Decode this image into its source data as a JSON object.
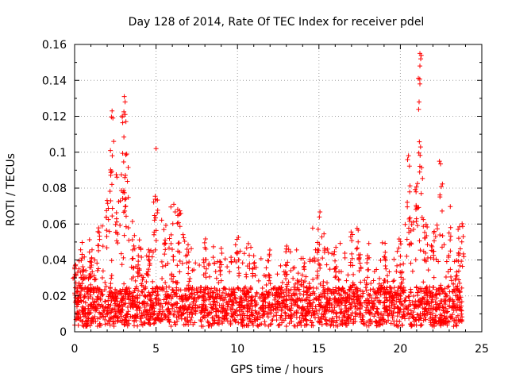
{
  "chart_data": {
    "type": "scatter",
    "title": "Day 128 of 2014, Rate Of TEC Index for receiver pdel",
    "xlabel": "GPS time / hours",
    "ylabel": "ROTI / TECUs",
    "xlim": [
      0,
      25
    ],
    "ylim": [
      0,
      0.16
    ],
    "xticks": [
      0,
      5,
      10,
      15,
      20,
      25
    ],
    "xtick_labels": [
      "0",
      "5",
      "10",
      "15",
      "20",
      "25"
    ],
    "yticks": [
      0,
      0.02,
      0.04,
      0.06,
      0.08,
      0.1,
      0.12,
      0.14,
      0.16
    ],
    "ytick_labels": [
      "0",
      "0.02",
      "0.04",
      "0.06",
      "0.08",
      "0.1",
      "0.12",
      "0.14",
      "0.16"
    ],
    "grid": true,
    "marker": "+",
    "color": "#ff0000",
    "data_range_x": [
      0,
      23.8
    ],
    "envelope": {
      "x": [
        0,
        0.5,
        1.0,
        1.5,
        2.0,
        2.3,
        2.6,
        3.0,
        3.2,
        3.6,
        4.0,
        4.5,
        5.0,
        5.5,
        6.0,
        6.4,
        7.0,
        8.0,
        9.0,
        10.0,
        11.0,
        12.0,
        13.0,
        14.0,
        15.0,
        16.0,
        17.0,
        17.5,
        18.0,
        19.0,
        20.0,
        20.5,
        21.0,
        21.2,
        21.5,
        22.0,
        22.5,
        23.0,
        23.5,
        23.8
      ],
      "y_max": [
        0.04,
        0.05,
        0.052,
        0.06,
        0.083,
        0.123,
        0.09,
        0.131,
        0.099,
        0.06,
        0.055,
        0.05,
        0.102,
        0.06,
        0.072,
        0.07,
        0.05,
        0.052,
        0.05,
        0.055,
        0.05,
        0.046,
        0.05,
        0.045,
        0.068,
        0.05,
        0.06,
        0.06,
        0.05,
        0.05,
        0.054,
        0.098,
        0.094,
        0.155,
        0.07,
        0.06,
        0.095,
        0.07,
        0.058,
        0.065
      ]
    },
    "peaks": [
      {
        "x": 2.3,
        "y": 0.123
      },
      {
        "x": 2.35,
        "y": 0.119
      },
      {
        "x": 2.4,
        "y": 0.106
      },
      {
        "x": 3.05,
        "y": 0.131
      },
      {
        "x": 3.1,
        "y": 0.128
      },
      {
        "x": 3.1,
        "y": 0.121
      },
      {
        "x": 3.15,
        "y": 0.117
      },
      {
        "x": 3.2,
        "y": 0.099
      },
      {
        "x": 5.0,
        "y": 0.102
      },
      {
        "x": 20.5,
        "y": 0.098
      },
      {
        "x": 21.2,
        "y": 0.155
      },
      {
        "x": 21.25,
        "y": 0.152
      },
      {
        "x": 21.2,
        "y": 0.148
      },
      {
        "x": 21.2,
        "y": 0.138
      },
      {
        "x": 21.15,
        "y": 0.128
      },
      {
        "x": 22.4,
        "y": 0.095
      }
    ]
  }
}
